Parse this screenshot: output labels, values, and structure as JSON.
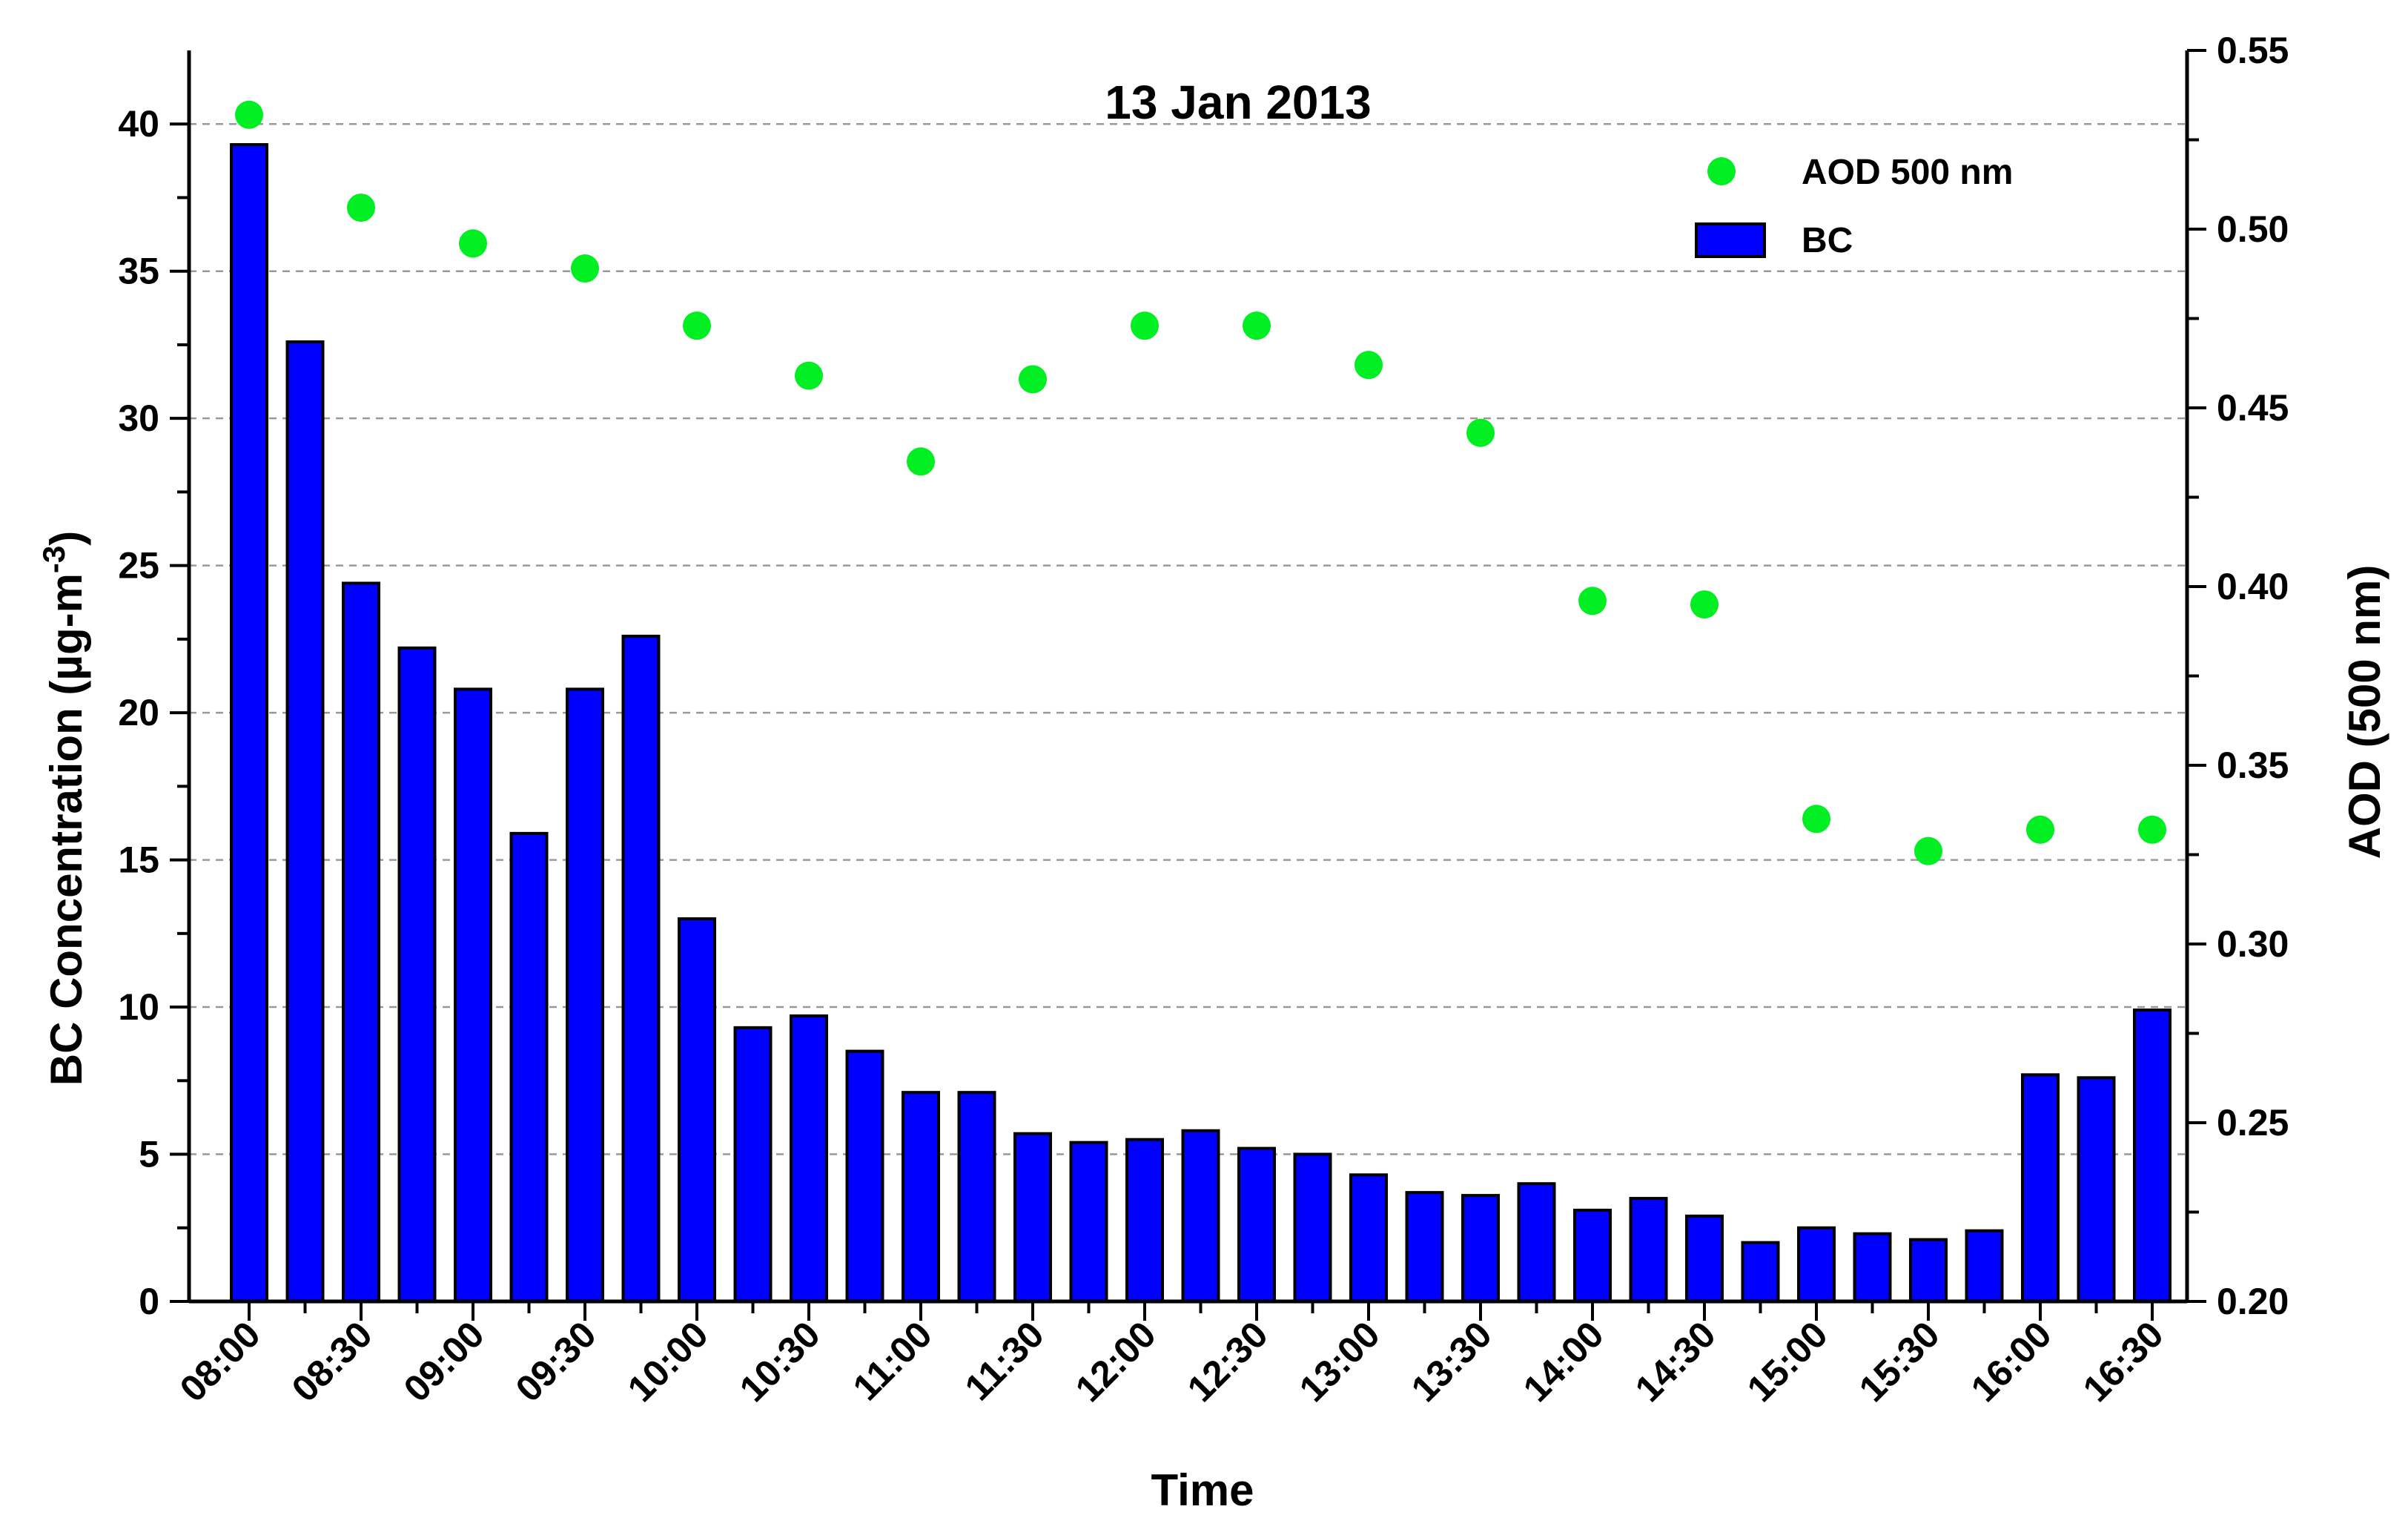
{
  "chart_data": {
    "type": "bar",
    "title": "13 Jan 2013",
    "xlabel": "Time",
    "ylabel": "BC Concentration (µg-m-3)",
    "ylabel_parts": {
      "main": "BC Concentration (µg-m",
      "sup": "-3",
      "end": ")"
    },
    "y2label": "AOD (500 nm)",
    "ylim": [
      0,
      42.5
    ],
    "y2lim": [
      0.2,
      0.55
    ],
    "yticks": [
      "0",
      "5",
      "10",
      "15",
      "20",
      "25",
      "30",
      "35",
      "40"
    ],
    "y2ticks": [
      "0.20",
      "0.25",
      "0.30",
      "0.35",
      "0.40",
      "0.45",
      "0.50",
      "0.55"
    ],
    "xtick_labels": [
      "08:00",
      "08:30",
      "09:00",
      "09:30",
      "10:00",
      "10:30",
      "11:00",
      "11:30",
      "12:00",
      "12:30",
      "13:00",
      "13:30",
      "14:00",
      "14:30",
      "15:00",
      "15:30",
      "16:00",
      "16:30"
    ],
    "grid": "horizontal dashed",
    "legend_position": "top-right",
    "legend": [
      "AOD 500 nm",
      "BC"
    ],
    "series": [
      {
        "name": "BC",
        "type": "bar",
        "axis": "left",
        "color": "#0000ff",
        "x": [
          "08:00",
          "08:15",
          "08:30",
          "08:45",
          "09:00",
          "09:15",
          "09:30",
          "09:45",
          "10:00",
          "10:15",
          "10:30",
          "10:45",
          "11:00",
          "11:15",
          "11:30",
          "11:45",
          "12:00",
          "12:15",
          "12:30",
          "12:45",
          "13:00",
          "13:15",
          "13:30",
          "13:45",
          "14:00",
          "14:15",
          "14:30",
          "14:45",
          "15:00",
          "15:15",
          "15:30",
          "15:45",
          "16:00",
          "16:15",
          "16:30"
        ],
        "values": [
          39.3,
          32.6,
          24.4,
          22.2,
          20.8,
          15.9,
          20.8,
          22.6,
          13.0,
          9.3,
          9.7,
          8.5,
          7.1,
          7.1,
          5.7,
          5.4,
          5.5,
          5.8,
          5.2,
          5.0,
          4.3,
          3.7,
          3.6,
          4.0,
          3.1,
          3.5,
          2.9,
          2.0,
          2.5,
          2.3,
          2.1,
          2.4,
          7.7,
          7.6,
          9.9
        ]
      },
      {
        "name": "AOD 500 nm",
        "type": "scatter",
        "axis": "right",
        "color": "#00ee22",
        "x": [
          "08:00",
          "08:30",
          "09:00",
          "09:30",
          "10:00",
          "10:30",
          "11:00",
          "11:30",
          "12:00",
          "12:30",
          "13:00",
          "13:30",
          "14:00",
          "14:30",
          "15:00",
          "15:30",
          "16:00",
          "16:30"
        ],
        "values": [
          0.532,
          0.506,
          0.496,
          0.489,
          0.473,
          0.459,
          0.435,
          0.458,
          0.473,
          0.473,
          0.462,
          0.443,
          0.396,
          0.395,
          0.335,
          0.326,
          0.332,
          0.332
        ]
      }
    ]
  }
}
